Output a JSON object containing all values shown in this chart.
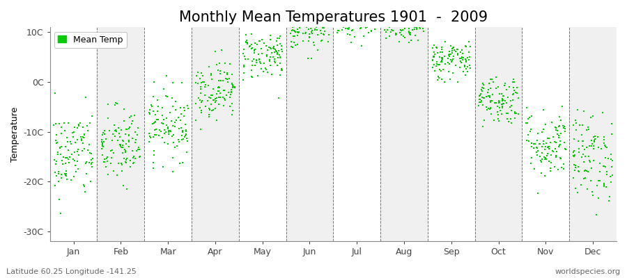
{
  "title": "Monthly Mean Temperatures 1901  -  2009",
  "ylabel": "Temperature",
  "footer_left": "Latitude 60.25 Longitude -141.25",
  "footer_right": "worldspecies.org",
  "legend_label": "Mean Temp",
  "dot_color": "#00CC00",
  "background_color": "#F0F0F0",
  "alt_band_color": "#FFFFFF",
  "ylim": [
    -32,
    11
  ],
  "yticks": [
    -30,
    -20,
    -10,
    0,
    10
  ],
  "ytick_labels": [
    "-30C",
    "-20C",
    "-10C",
    "0C",
    "10C"
  ],
  "months": [
    "Jan",
    "Feb",
    "Mar",
    "Apr",
    "May",
    "Jun",
    "Jul",
    "Aug",
    "Sep",
    "Oct",
    "Nov",
    "Dec"
  ],
  "month_means": [
    -14.5,
    -13.0,
    -8.5,
    -1.5,
    5.5,
    10.5,
    12.5,
    11.5,
    4.5,
    -3.5,
    -12.5,
    -15.0
  ],
  "month_stds": [
    4.5,
    4.0,
    3.5,
    3.0,
    2.5,
    2.0,
    1.8,
    1.8,
    2.0,
    2.5,
    3.5,
    4.5
  ],
  "n_years": 109,
  "seed": 42,
  "dot_size": 4,
  "title_fontsize": 15,
  "axis_label_fontsize": 9,
  "tick_fontsize": 9,
  "footer_fontsize": 8
}
